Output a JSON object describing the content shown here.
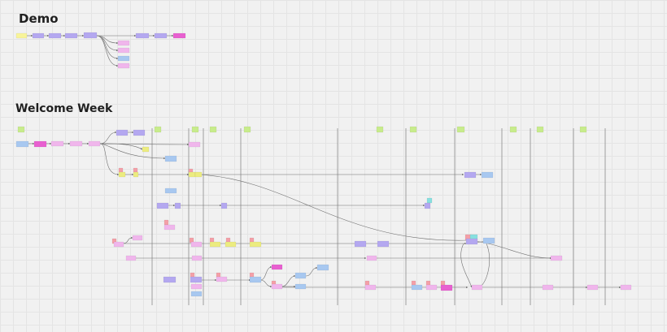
{
  "boards": {
    "demo_title": "Demo",
    "welcome_week_title": "Welcome Week"
  },
  "colors": {
    "yellow": "#f8f49a",
    "purple": "#b4a8f0",
    "pink": "#f0b6ec",
    "magenta": "#e860d0",
    "blue": "#a8c8f0",
    "olive": "#ecec80",
    "red": "#f4a0a8",
    "green": "#c8ec8c",
    "teal": "#88e0e0",
    "line": "#6e6e6e",
    "divider": "#8c8c8c"
  },
  "icons": {
    "node": "sticky-note-card",
    "edge": "connector-arrow",
    "divider": "day-divider-line"
  }
}
